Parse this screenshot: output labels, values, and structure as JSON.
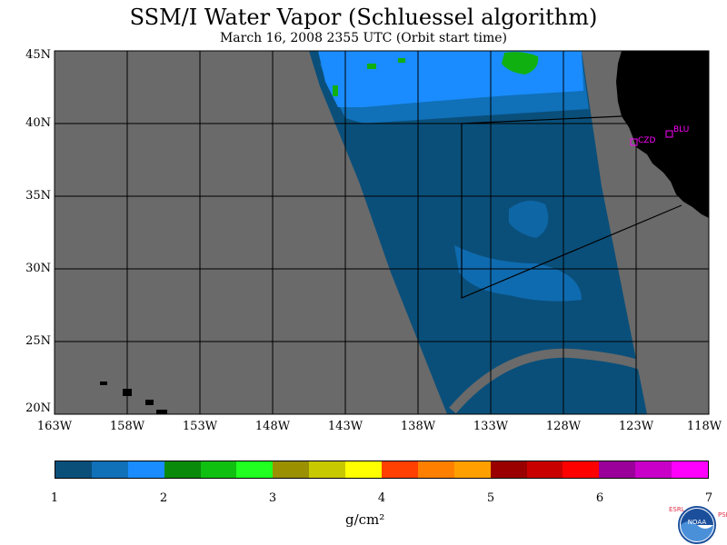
{
  "title": "SSM/I Water Vapor (Schluessel algorithm)",
  "subtitle": "March 16, 2008  2355 UTC  (Orbit start time)",
  "lat_labels": [
    "45N",
    "40N",
    "35N",
    "30N",
    "25N",
    "20N"
  ],
  "lon_labels": [
    "163W",
    "158W",
    "153W",
    "148W",
    "143W",
    "138W",
    "133W",
    "128W",
    "123W",
    "118W"
  ],
  "stations": [
    {
      "label": "CZD"
    },
    {
      "label": "BLU"
    }
  ],
  "colorbar": {
    "labels": [
      "1",
      "2",
      "3",
      "4",
      "5",
      "6",
      "7"
    ],
    "units": "g/cm²",
    "colors": [
      "#0a4f7a",
      "#1070b8",
      "#1a8cff",
      "#0a8a0a",
      "#10c010",
      "#20ff20",
      "#9a9000",
      "#c8c800",
      "#ffff00",
      "#ff4000",
      "#ff8000",
      "#ffa000",
      "#9a0000",
      "#c80000",
      "#ff0000",
      "#9a009a",
      "#c800c8",
      "#ff00ff"
    ]
  },
  "logo": {
    "left_text": "ESRL",
    "right_text": "PSD",
    "badge_text": "NOAA"
  },
  "colors": {
    "land": "#000000",
    "no_data": "#6a6a6a",
    "low_vapor": "#0a4f7a",
    "mid_vapor": "#1070b8",
    "high_vapor": "#1a8cff",
    "green_vapor": "#10b010",
    "station_marker": "#ff00ff",
    "grid": "#000000"
  }
}
